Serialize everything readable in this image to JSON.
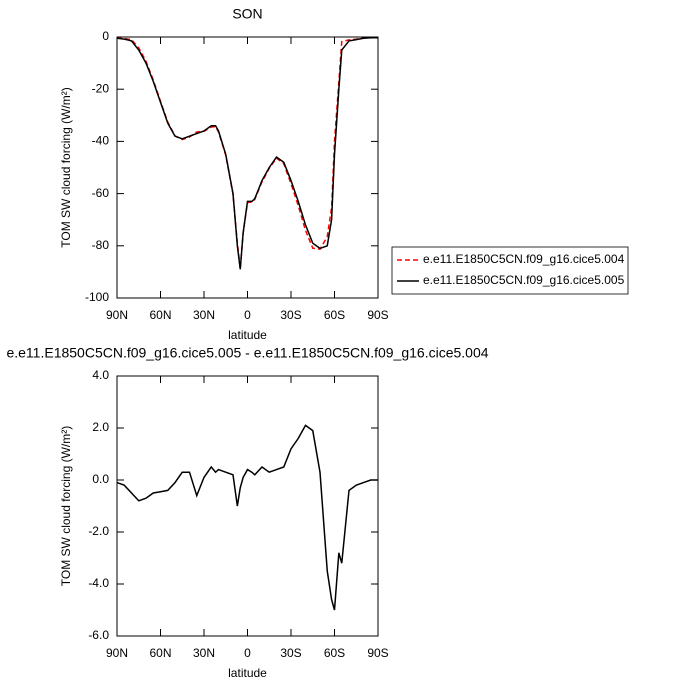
{
  "chart_data": [
    {
      "type": "line",
      "title": "SON",
      "xlabel": "latitude",
      "ylabel": "TOM SW cloud forcing (W/m²)",
      "xlim": [
        90,
        -90
      ],
      "xticks": [
        {
          "value": 90,
          "label": "90N"
        },
        {
          "value": 60,
          "label": "60N"
        },
        {
          "value": 30,
          "label": "30N"
        },
        0,
        {
          "value": -30,
          "label": "30S"
        },
        {
          "value": -60,
          "label": "60S"
        },
        {
          "value": -90,
          "label": "90S"
        }
      ],
      "ylim": [
        -100,
        0
      ],
      "yticks": [
        0,
        -20,
        -40,
        -60,
        -80,
        -100
      ],
      "legend": "right",
      "x": [
        90,
        85,
        80,
        75,
        70,
        65,
        60,
        55,
        50,
        45,
        40,
        35,
        30,
        25,
        22,
        20,
        15,
        10,
        7,
        5,
        3,
        0,
        -3,
        -5,
        -10,
        -15,
        -20,
        -25,
        -30,
        -35,
        -40,
        -45,
        -50,
        -55,
        -58,
        -60,
        -63,
        -65,
        -70,
        -75,
        -80,
        -85,
        -90
      ],
      "series": [
        {
          "name": "e.e11.E1850C5CN.f09_g16.cice5.004",
          "color": "#ff0000",
          "linestyle": "dashed",
          "values": [
            -0.4,
            -0.6,
            -1.0,
            -4.2,
            -9.3,
            -16.5,
            -24.6,
            -32.6,
            -37.9,
            -39.3,
            -38.3,
            -36.4,
            -36.1,
            -34.5,
            -34.3,
            -36.4,
            -45.3,
            -60.2,
            -79,
            -88.7,
            -75.1,
            -63.4,
            -63.3,
            -62.2,
            -55.5,
            -50.3,
            -46.4,
            -48.5,
            -56.2,
            -64.6,
            -74.1,
            -80.9,
            -81.3,
            -76.5,
            -65.4,
            -40,
            -17.2,
            -1.8,
            -1.1,
            -0.8,
            -0.4,
            -0.3,
            -0.3
          ]
        },
        {
          "name": "e.e11.E1850C5CN.f09_g16.cice5.005",
          "color": "#000000",
          "linestyle": "solid",
          "values": [
            -0.5,
            -0.8,
            -1.5,
            -5,
            -10,
            -17,
            -25,
            -33,
            -38,
            -39,
            -38,
            -37,
            -36,
            -34,
            -34,
            -36,
            -45,
            -60,
            -80,
            -89,
            -75,
            -63,
            -63,
            -62,
            -55,
            -50,
            -46,
            -48,
            -55,
            -63,
            -72,
            -79,
            -81,
            -80,
            -70,
            -45,
            -20,
            -5,
            -1.5,
            -1,
            -0.5,
            -0.3,
            -0.3
          ]
        }
      ]
    },
    {
      "type": "line",
      "title": "e.e11.E1850C5CN.f09_g16.cice5.005 - e.e11.E1850C5CN.f09_g16.cice5.004",
      "xlabel": "latitude",
      "ylabel": "TOM SW cloud forcing (W/m²)",
      "xlim": [
        90,
        -90
      ],
      "xticks": [
        {
          "value": 90,
          "label": "90N"
        },
        {
          "value": 60,
          "label": "60N"
        },
        {
          "value": 30,
          "label": "30N"
        },
        0,
        {
          "value": -30,
          "label": "30S"
        },
        {
          "value": -60,
          "label": "60S"
        },
        {
          "value": -90,
          "label": "90S"
        }
      ],
      "ylim": [
        -6,
        4
      ],
      "yticks": [
        {
          "value": 4,
          "label": "4.0"
        },
        {
          "value": 2,
          "label": "2.0"
        },
        {
          "value": 0,
          "label": "0.0"
        },
        {
          "value": -2,
          "label": "-2.0"
        },
        {
          "value": -4,
          "label": "-4.0"
        },
        {
          "value": -6,
          "label": "-6.0"
        }
      ],
      "x": [
        90,
        85,
        80,
        75,
        70,
        65,
        60,
        55,
        50,
        45,
        40,
        35,
        30,
        25,
        22,
        20,
        15,
        10,
        7,
        5,
        3,
        0,
        -3,
        -5,
        -10,
        -15,
        -20,
        -25,
        -30,
        -35,
        -40,
        -45,
        -50,
        -55,
        -58,
        -60,
        -63,
        -65,
        -70,
        -75,
        -80,
        -85,
        -90
      ],
      "series": [
        {
          "color": "#000000",
          "linestyle": "solid",
          "values": [
            -0.1,
            -0.2,
            -0.5,
            -0.8,
            -0.7,
            -0.5,
            -0.45,
            -0.4,
            -0.1,
            0.3,
            0.3,
            -0.6,
            0.1,
            0.5,
            0.3,
            0.4,
            0.3,
            0.2,
            -1.0,
            -0.3,
            0.1,
            0.4,
            0.3,
            0.2,
            0.5,
            0.3,
            0.4,
            0.5,
            1.2,
            1.6,
            2.1,
            1.9,
            0.3,
            -3.5,
            -4.6,
            -5.0,
            -2.8,
            -3.2,
            -0.4,
            -0.2,
            -0.1,
            0,
            0
          ]
        }
      ]
    }
  ]
}
